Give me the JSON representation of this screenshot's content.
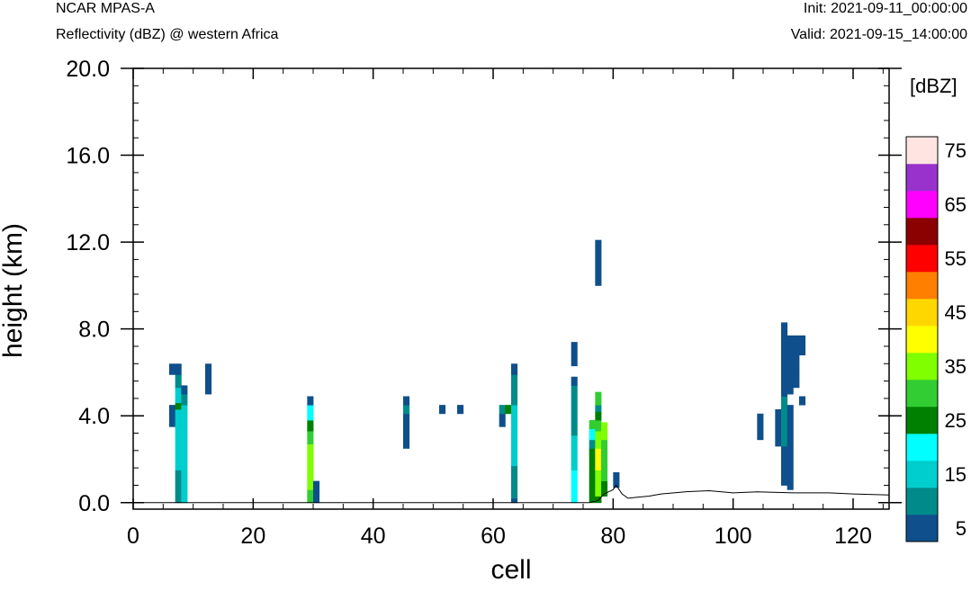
{
  "header": {
    "model": "NCAR MPAS-A",
    "field": "Reflectivity (dBZ) @ western Africa",
    "init": "Init: 2021-09-11_00:00:00",
    "valid": "Valid: 2021-09-15_14:00:00"
  },
  "chart_data": {
    "type": "heatmap",
    "title": "Reflectivity (dBZ) @ western Africa",
    "xlabel": "cell",
    "ylabel": "height (km)",
    "xlim": [
      0,
      126
    ],
    "ylim": [
      -0.3,
      20.0
    ],
    "x_ticks": [
      "0",
      "20",
      "40",
      "60",
      "80",
      "100",
      "120"
    ],
    "y_ticks": [
      "0.0",
      "4.0",
      "8.0",
      "12.0",
      "16.0",
      "20.0"
    ],
    "colorbar": {
      "unit": "[dBZ]",
      "tick_labels": [
        "5",
        "15",
        "25",
        "35",
        "45",
        "55",
        "65",
        "75"
      ],
      "colors": [
        "#0f4f8c",
        "#008b8b",
        "#00cdcd",
        "#00ffff",
        "#008000",
        "#32cd32",
        "#7fff00",
        "#ffff00",
        "#ffd700",
        "#ff7f00",
        "#ff0000",
        "#8b0000",
        "#ff00ff",
        "#9932cc",
        "#ffe4e1"
      ]
    },
    "cells": [
      {
        "x": 6,
        "ranges": [
          [
            3.5,
            4.5,
            1
          ],
          [
            5.9,
            6.4,
            1
          ]
        ]
      },
      {
        "x": 7,
        "ranges": [
          [
            0.0,
            1.5,
            2
          ],
          [
            1.5,
            3.0,
            3
          ],
          [
            3.0,
            4.3,
            3
          ],
          [
            4.3,
            4.6,
            5
          ],
          [
            4.6,
            5.3,
            3
          ],
          [
            5.3,
            5.9,
            2
          ],
          [
            5.9,
            6.4,
            1
          ]
        ]
      },
      {
        "x": 8,
        "ranges": [
          [
            0.0,
            4.5,
            3
          ],
          [
            4.5,
            5.0,
            2
          ],
          [
            5.0,
            5.4,
            1
          ]
        ]
      },
      {
        "x": 12,
        "ranges": [
          [
            5.0,
            6.4,
            1
          ]
        ]
      },
      {
        "x": 29,
        "ranges": [
          [
            0.0,
            0.6,
            6
          ],
          [
            0.6,
            1.3,
            7
          ],
          [
            1.3,
            2.7,
            7
          ],
          [
            2.7,
            3.3,
            6
          ],
          [
            3.3,
            3.8,
            5
          ],
          [
            3.8,
            4.5,
            4
          ],
          [
            4.5,
            4.9,
            1
          ]
        ]
      },
      {
        "x": 30,
        "ranges": [
          [
            0.0,
            0.5,
            1
          ],
          [
            0.5,
            1.0,
            1
          ]
        ]
      },
      {
        "x": 45,
        "ranges": [
          [
            2.5,
            4.1,
            1
          ],
          [
            4.1,
            4.5,
            2
          ],
          [
            4.5,
            4.9,
            1
          ]
        ]
      },
      {
        "x": 51,
        "ranges": [
          [
            4.1,
            4.5,
            1
          ]
        ]
      },
      {
        "x": 54,
        "ranges": [
          [
            4.1,
            4.5,
            1
          ]
        ]
      },
      {
        "x": 61,
        "ranges": [
          [
            3.5,
            4.1,
            1
          ],
          [
            4.1,
            4.5,
            2
          ]
        ]
      },
      {
        "x": 62,
        "ranges": [
          [
            4.1,
            4.5,
            5
          ]
        ]
      },
      {
        "x": 63,
        "ranges": [
          [
            0.0,
            0.2,
            1
          ],
          [
            0.2,
            1.7,
            2
          ],
          [
            1.7,
            3.0,
            3
          ],
          [
            3.0,
            4.5,
            3
          ],
          [
            4.5,
            5.9,
            2
          ],
          [
            5.9,
            6.4,
            1
          ]
        ]
      },
      {
        "x": 73,
        "ranges": [
          [
            0.0,
            1.5,
            4
          ],
          [
            1.5,
            3.1,
            3
          ],
          [
            3.1,
            5.4,
            2
          ],
          [
            5.4,
            5.8,
            1
          ],
          [
            6.3,
            7.4,
            1
          ]
        ]
      },
      {
        "x": 76,
        "ranges": [
          [
            0.0,
            1.5,
            5
          ],
          [
            1.5,
            2.5,
            5
          ],
          [
            2.5,
            2.9,
            2
          ],
          [
            2.9,
            3.4,
            4
          ],
          [
            3.4,
            3.8,
            6
          ]
        ]
      },
      {
        "x": 77,
        "ranges": [
          [
            0.0,
            0.3,
            5
          ],
          [
            0.3,
            1.5,
            7
          ],
          [
            1.5,
            2.5,
            8
          ],
          [
            2.5,
            3.3,
            7
          ],
          [
            3.3,
            3.8,
            6
          ],
          [
            3.8,
            4.2,
            5
          ],
          [
            4.2,
            4.5,
            2
          ],
          [
            4.5,
            5.1,
            6
          ],
          [
            10.0,
            12.1,
            1
          ]
        ]
      },
      {
        "x": 78,
        "ranges": [
          [
            0.3,
            1.0,
            5
          ],
          [
            1.0,
            2.9,
            6
          ],
          [
            2.9,
            3.7,
            7
          ]
        ]
      },
      {
        "x": 80,
        "ranges": [
          [
            0.7,
            1.4,
            1
          ]
        ]
      },
      {
        "x": 104,
        "ranges": [
          [
            2.9,
            4.1,
            1
          ]
        ]
      },
      {
        "x": 107,
        "ranges": [
          [
            2.6,
            4.3,
            1
          ]
        ]
      },
      {
        "x": 108,
        "ranges": [
          [
            0.8,
            2.6,
            1
          ],
          [
            2.6,
            3.5,
            2
          ],
          [
            3.5,
            4.9,
            2
          ],
          [
            4.9,
            5.6,
            1
          ],
          [
            5.6,
            7.0,
            1
          ],
          [
            7.0,
            8.3,
            1
          ]
        ]
      },
      {
        "x": 109,
        "ranges": [
          [
            0.6,
            2.7,
            1
          ],
          [
            2.7,
            3.5,
            1
          ],
          [
            3.5,
            4.5,
            1
          ],
          [
            5.0,
            5.6,
            1
          ],
          [
            5.6,
            7.7,
            1
          ]
        ]
      },
      {
        "x": 110,
        "ranges": [
          [
            5.3,
            5.9,
            1
          ],
          [
            5.9,
            7.7,
            1
          ]
        ]
      },
      {
        "x": 111,
        "ranges": [
          [
            4.5,
            4.9,
            1
          ],
          [
            6.8,
            7.7,
            1
          ]
        ]
      }
    ],
    "terrain": [
      [
        76.0,
        0.0
      ],
      [
        77.5,
        0.1
      ],
      [
        78.5,
        0.4
      ],
      [
        80.0,
        0.6
      ],
      [
        80.5,
        0.8
      ],
      [
        81.5,
        0.4
      ],
      [
        82.5,
        0.2
      ],
      [
        84.0,
        0.25
      ],
      [
        86.0,
        0.3
      ],
      [
        88.0,
        0.4
      ],
      [
        92.0,
        0.5
      ],
      [
        96.0,
        0.55
      ],
      [
        100.0,
        0.45
      ],
      [
        104.0,
        0.5
      ],
      [
        110.0,
        0.45
      ],
      [
        116.0,
        0.45
      ],
      [
        120.0,
        0.4
      ],
      [
        126.0,
        0.35
      ]
    ]
  }
}
